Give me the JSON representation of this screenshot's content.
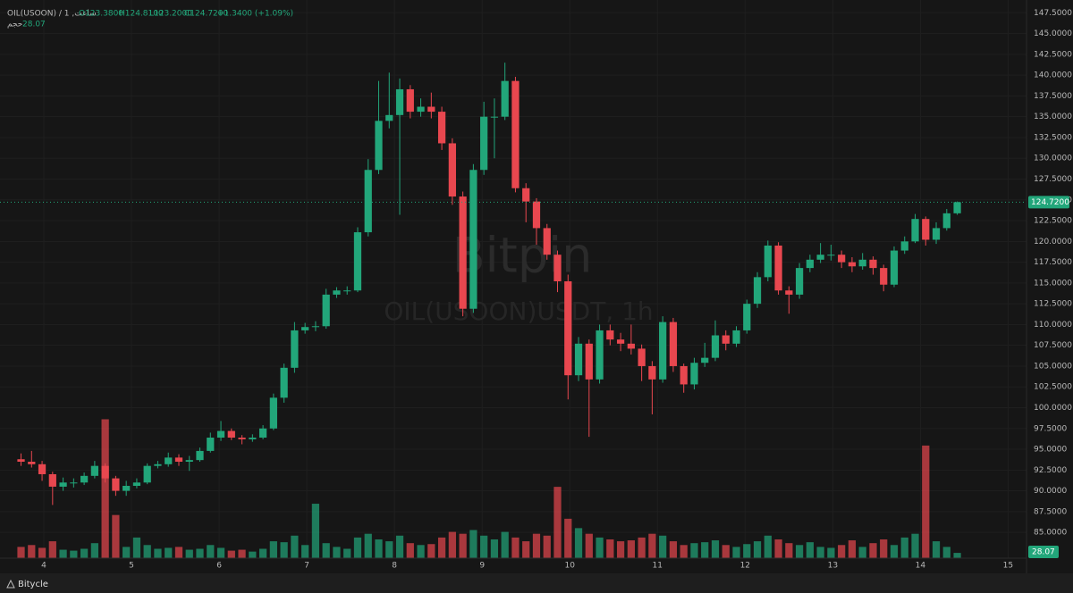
{
  "header": {
    "symbol": "OIL(USOON) / 1 ,ساعت",
    "open": "O123.3800",
    "high": "H124.8100",
    "low": "L123.2000",
    "close": "C124.7200",
    "change": "+1.3400 (+1.09%)",
    "volume_name": "حجم",
    "volume_value": "28.07"
  },
  "watermark": {
    "brand": "Bitpin",
    "pair": "OIL(USOON)USDT, 1h"
  },
  "footer": "Bitycle",
  "chart_data": {
    "type": "candlestick",
    "x": [
      3.74,
      3.86,
      3.98,
      4.1,
      4.22,
      4.34,
      4.46,
      4.58,
      4.7,
      4.82,
      4.94,
      5.06,
      5.18,
      5.3,
      5.42,
      5.54,
      5.66,
      5.78,
      5.9,
      6.02,
      6.14,
      6.26,
      6.38,
      6.5,
      6.62,
      6.74,
      6.86,
      6.98,
      7.1,
      7.22,
      7.34,
      7.46,
      7.58,
      7.7,
      7.82,
      7.94,
      8.06,
      8.18,
      8.3,
      8.42,
      8.54,
      8.66,
      8.78,
      8.9,
      9.02,
      9.14,
      9.26,
      9.38,
      9.5,
      9.62,
      9.74,
      9.86,
      9.98,
      10.1,
      10.22,
      10.34,
      10.46,
      10.58,
      10.7,
      10.82,
      10.94,
      11.06,
      11.18,
      11.3,
      11.42,
      11.54,
      11.66,
      11.78,
      11.9,
      12.02,
      12.14,
      12.26,
      12.38,
      12.5,
      12.62,
      12.74,
      12.86,
      12.98,
      13.1,
      13.22,
      13.34,
      13.46,
      13.58,
      13.7,
      13.82,
      13.94,
      14.06,
      14.18,
      14.3,
      14.42
    ],
    "open": [
      93.8,
      93.5,
      93.2,
      92,
      90.5,
      91,
      91,
      91.8,
      93,
      91.5,
      90,
      90.6,
      91,
      93,
      93.2,
      94,
      93.5,
      93.7,
      94.8,
      96.4,
      97.2,
      96.4,
      96.2,
      96.4,
      97.5,
      101.2,
      104.8,
      109.3,
      109.7,
      109.8,
      113.6,
      114.1,
      114.1,
      121.1,
      128.6,
      134.5,
      135.2,
      138.3,
      135.6,
      136.2,
      135.6,
      131.8,
      125.4,
      111.9,
      128.6,
      135,
      135,
      139.3,
      126.4,
      124.8,
      121.6,
      118.4,
      115.2,
      103.9,
      107.7,
      103.4,
      109.3,
      108.2,
      107.7,
      107.1,
      105,
      103.4,
      110.3,
      105,
      102.8,
      105.4,
      106,
      108.7,
      107.7,
      109.3,
      112.5,
      115.7,
      119.5,
      114.1,
      113.6,
      116.8,
      117.8,
      118.4,
      118.4,
      117.5,
      117,
      117.8,
      116.8,
      114.8,
      118.9,
      120,
      122.7,
      120.2,
      121.6,
      123.38
    ],
    "high": [
      94.5,
      94.8,
      93.6,
      92.3,
      91.6,
      91.5,
      92.2,
      93.6,
      93.3,
      91.8,
      91.2,
      91.5,
      93.3,
      93.6,
      94.6,
      94.4,
      94.2,
      95.2,
      97,
      98.4,
      97.5,
      96.7,
      96.8,
      97.9,
      101.7,
      105.3,
      110.3,
      110.2,
      110.4,
      114.3,
      114.5,
      114.6,
      121.7,
      129.9,
      139.3,
      140.3,
      139.6,
      138.8,
      137.2,
      137.9,
      136.2,
      132.4,
      126,
      129.3,
      136.8,
      137.2,
      141.5,
      139.8,
      127,
      125.2,
      122.1,
      118.9,
      116,
      108.5,
      108.2,
      110,
      110,
      109,
      110,
      107.6,
      105.6,
      111,
      110.8,
      105.3,
      106,
      107.8,
      110.5,
      109.3,
      109.8,
      113,
      116.3,
      120.1,
      119.9,
      114.6,
      117.4,
      118.4,
      119.8,
      119.6,
      118.9,
      118.1,
      118.6,
      118.2,
      117.2,
      119.4,
      120.6,
      123.3,
      123,
      122.3,
      123.9,
      124.81
    ],
    "low": [
      93,
      92.8,
      91.2,
      88.3,
      90,
      90.4,
      90.7,
      91.5,
      91,
      89.4,
      89.4,
      90.3,
      90.8,
      92.7,
      92.9,
      93,
      92.4,
      93.5,
      94.6,
      96,
      96.1,
      95.6,
      95.9,
      96.2,
      97.3,
      100.6,
      104.2,
      108.9,
      109.2,
      109.5,
      113.2,
      113.6,
      113.9,
      120.6,
      128.1,
      133.6,
      123.2,
      134.8,
      135,
      134.8,
      131,
      124.4,
      111,
      111.4,
      128,
      130,
      134.6,
      125.9,
      122.3,
      119.6,
      117.8,
      113.9,
      101,
      103.2,
      96.5,
      102.9,
      107.5,
      106.8,
      106.4,
      103.2,
      99.2,
      103,
      104.3,
      101.8,
      102.2,
      104.9,
      105.6,
      106.9,
      107.3,
      108.9,
      112,
      115.2,
      113.6,
      111.3,
      113.1,
      116.3,
      117.4,
      117.7,
      116.8,
      116.3,
      116.6,
      116,
      114,
      114.5,
      118.5,
      119.8,
      119.5,
      119.7,
      121.3,
      123.2
    ],
    "close": [
      93.5,
      93.2,
      92,
      90.5,
      91,
      91,
      91.8,
      93,
      91.5,
      90,
      90.6,
      91,
      93,
      93.2,
      94,
      93.5,
      93.7,
      94.8,
      96.4,
      97.2,
      96.4,
      96.2,
      96.4,
      97.5,
      101.2,
      104.8,
      109.3,
      109.7,
      109.8,
      113.6,
      114.1,
      114.1,
      121.1,
      128.6,
      134.5,
      135.2,
      138.3,
      135.6,
      136.2,
      135.6,
      131.8,
      125.4,
      111.9,
      128.6,
      135,
      135,
      139.3,
      126.4,
      124.8,
      121.6,
      118.4,
      115.2,
      103.9,
      107.7,
      103.4,
      109.3,
      108.2,
      107.7,
      107.1,
      105,
      103.4,
      110.3,
      105,
      102.8,
      105.4,
      106,
      108.7,
      107.7,
      109.3,
      112.5,
      115.7,
      119.5,
      114.1,
      113.6,
      116.8,
      117.8,
      118.4,
      118.4,
      117.5,
      117,
      117.8,
      116.8,
      114.8,
      118.9,
      120,
      122.7,
      120.2,
      121.6,
      123.38,
      124.72
    ],
    "volume": [
      60,
      70,
      55,
      90,
      45,
      40,
      50,
      80,
      740,
      230,
      60,
      110,
      70,
      50,
      55,
      60,
      45,
      50,
      70,
      55,
      40,
      45,
      35,
      50,
      90,
      85,
      120,
      70,
      290,
      80,
      60,
      50,
      110,
      130,
      100,
      90,
      120,
      80,
      70,
      75,
      110,
      140,
      130,
      150,
      120,
      100,
      140,
      110,
      90,
      130,
      120,
      380,
      210,
      160,
      130,
      110,
      100,
      90,
      95,
      110,
      130,
      120,
      90,
      70,
      80,
      85,
      95,
      70,
      60,
      75,
      90,
      120,
      100,
      80,
      70,
      85,
      60,
      55,
      70,
      95,
      60,
      80,
      100,
      70,
      110,
      130,
      600,
      90,
      60,
      28.07
    ],
    "up_color": "#22a67a",
    "down_color": "#e8474f",
    "last_price_label": "124.7200",
    "last_volume_label": "28.07",
    "xlim": [
      3.5,
      15.21
    ],
    "xticks": [
      4,
      5,
      6,
      7,
      8,
      9,
      10,
      11,
      12,
      13,
      14,
      15
    ],
    "ylim": [
      81.9,
      148.5
    ],
    "yticks": [
      {
        "value": 147.5,
        "label": "147.5000"
      },
      {
        "value": 145,
        "label": "145.0000"
      },
      {
        "value": 142.5,
        "label": "142.5000"
      },
      {
        "value": 140,
        "label": "140.0000"
      },
      {
        "value": 137.5,
        "label": "137.5000"
      },
      {
        "value": 135,
        "label": "135.0000"
      },
      {
        "value": 132.5,
        "label": "132.5000"
      },
      {
        "value": 130,
        "label": "130.0000"
      },
      {
        "value": 127.5,
        "label": "127.5000"
      },
      {
        "value": 125,
        "label": "125.0000"
      },
      {
        "value": 122.5,
        "label": "122.5000"
      },
      {
        "value": 120,
        "label": "120.0000"
      },
      {
        "value": 117.5,
        "label": "117.5000"
      },
      {
        "value": 115,
        "label": "115.0000"
      },
      {
        "value": 112.5,
        "label": "112.5000"
      },
      {
        "value": 110,
        "label": "110.0000"
      },
      {
        "value": 107.5,
        "label": "107.5000"
      },
      {
        "value": 105,
        "label": "105.0000"
      },
      {
        "value": 102.5,
        "label": "102.5000"
      },
      {
        "value": 100,
        "label": "100.0000"
      },
      {
        "value": 97.5,
        "label": "97.5000"
      },
      {
        "value": 95,
        "label": "95.0000"
      },
      {
        "value": 92.5,
        "label": "92.5000"
      },
      {
        "value": 90,
        "label": "90.0000"
      },
      {
        "value": 87.5,
        "label": "87.5000"
      },
      {
        "value": 85,
        "label": "85.0000"
      }
    ],
    "y2lim": [
      0,
      2950
    ],
    "grid": true
  }
}
